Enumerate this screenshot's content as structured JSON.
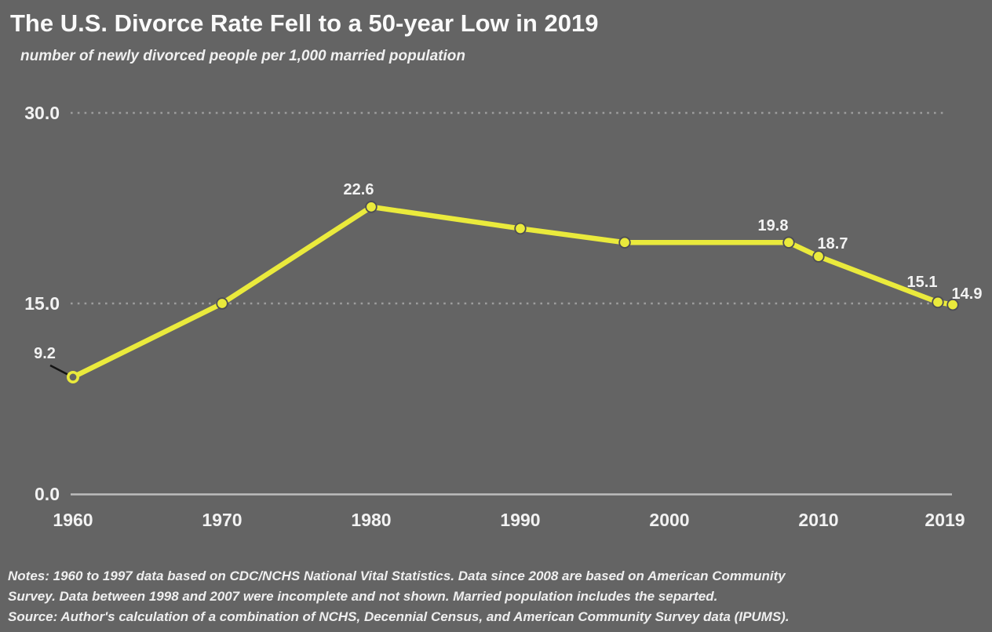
{
  "header": {
    "title": "The U.S. Divorce Rate Fell to a 50-year Low in 2019",
    "subtitle": "number of newly divorced people per 1,000 married population"
  },
  "footer": {
    "notes_lines": [
      "Notes: 1960 to 1997 data based on CDC/NCHS National Vital Statistics. Data since 2008 are based on American Community",
      "Survey. Data between 1998 and 2007 were incomplete and not shown. Married population includes the separted."
    ],
    "source": "Source: Author's calculation of a combination of NCHS, Decennial Census, and American Community Survey data (IPUMS)."
  },
  "colors": {
    "background": "#646464",
    "line": "#eaea3c",
    "text": "#f2f2f2",
    "grid_dots": "#9d9d9d",
    "axis_line": "#bdbdbd",
    "marker_outline": "#4d4d55",
    "leader_line": "#141414"
  },
  "chart_data": {
    "type": "line",
    "title": "The U.S. Divorce Rate Fell to a 50-year Low in 2019",
    "subtitle": "number of newly divorced people per 1,000 married population",
    "x": [
      1960,
      1970,
      1980,
      1990,
      1997,
      2008,
      2010,
      2018,
      2019
    ],
    "series": [
      {
        "name": "newly divorced people per 1,000 married population",
        "values": [
          9.2,
          15.0,
          22.6,
          20.9,
          19.8,
          19.8,
          18.7,
          15.1,
          14.9
        ]
      }
    ],
    "point_labels": {
      "1960": "9.2",
      "1980": "22.6",
      "2008": "19.8",
      "2010": "18.7",
      "2018": "15.1",
      "2019": "14.9"
    },
    "x_tick_labels": [
      "1960",
      "1970",
      "1980",
      "1990",
      "2000",
      "2010",
      "2019"
    ],
    "y_ticks": [
      {
        "value": 0,
        "label": "0.0"
      },
      {
        "value": 15,
        "label": "15.0"
      },
      {
        "value": 30,
        "label": "30.0"
      }
    ],
    "ylim": [
      0,
      30
    ],
    "xlim": [
      1960,
      2019
    ],
    "grid": "horizontal dotted gridlines at 15.0 and 30.0, solid baseline at 0.0",
    "legend": "none"
  }
}
